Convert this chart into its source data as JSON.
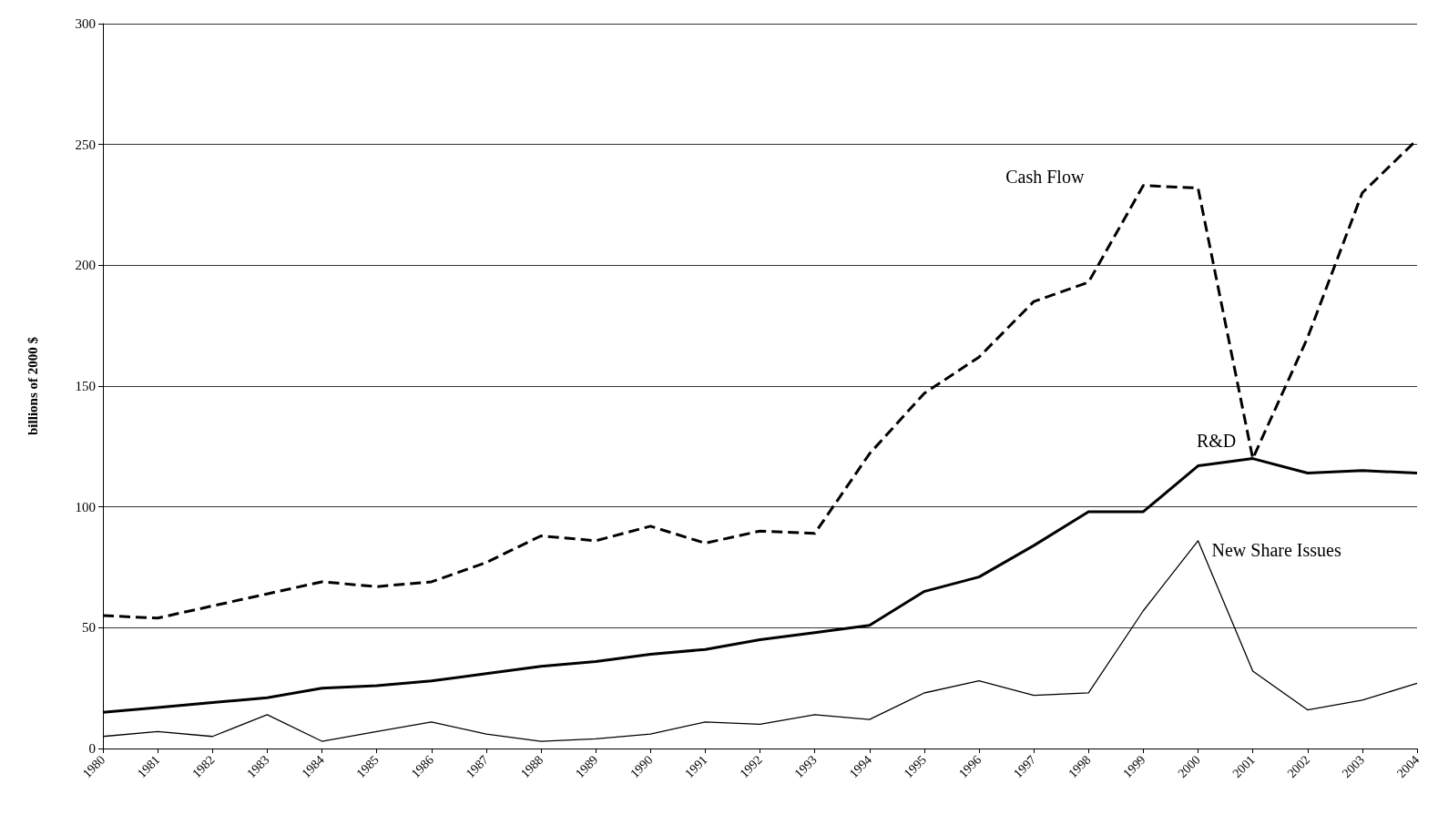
{
  "chart_data": {
    "type": "line",
    "ylabel": "billions of 2000 $",
    "categories": [
      "1980",
      "1981",
      "1982",
      "1983",
      "1984",
      "1985",
      "1986",
      "1987",
      "1988",
      "1989",
      "1990",
      "1991",
      "1992",
      "1993",
      "1994",
      "1995",
      "1996",
      "1997",
      "1998",
      "1999",
      "2000",
      "2001",
      "2002",
      "2003",
      "2004"
    ],
    "series": [
      {
        "name": "Cash Flow",
        "color": "#000000",
        "line_style": "dashed",
        "values": [
          55,
          54,
          59,
          64,
          69,
          67,
          69,
          77,
          88,
          86,
          92,
          85,
          90,
          89,
          122,
          147,
          162,
          185,
          193,
          233,
          232,
          120,
          170,
          230,
          252
        ]
      },
      {
        "name": "R&D",
        "color": "#000000",
        "line_style": "solid",
        "values": [
          15,
          17,
          19,
          21,
          25,
          26,
          28,
          31,
          34,
          36,
          39,
          41,
          45,
          48,
          51,
          65,
          71,
          84,
          98,
          98,
          117,
          120,
          114,
          115,
          114
        ]
      },
      {
        "name": "New Share Issues",
        "color": "#000000",
        "line_style": "solid",
        "values": [
          5,
          7,
          5,
          14,
          3,
          7,
          11,
          6,
          3,
          4,
          6,
          11,
          10,
          14,
          12,
          23,
          28,
          22,
          23,
          57,
          86,
          32,
          16,
          20,
          27
        ]
      }
    ],
    "ylim": [
      0,
      300
    ],
    "yticks": [
      0,
      50,
      100,
      150,
      200,
      250,
      300
    ],
    "grid": "y",
    "marker": "none"
  }
}
